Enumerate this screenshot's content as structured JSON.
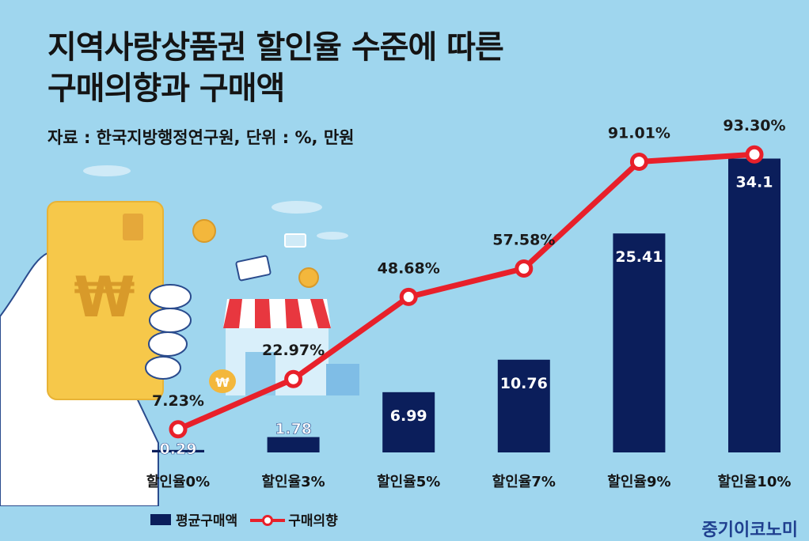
{
  "header": {
    "title_line1": "지역사랑상품권 할인율 수준에 따른",
    "title_line2": "구매의향과 구매액",
    "subtitle": "자료 : 한국지방행정연구원, 단위 : %, 만원"
  },
  "chart_data": {
    "type": "bar+line",
    "title": "지역사랑상품권 할인율 수준에 따른 구매의향과 구매액",
    "categories": [
      "할인율0%",
      "할인율3%",
      "할인율5%",
      "할인율7%",
      "할인율9%",
      "할인율10%"
    ],
    "series": [
      {
        "name": "평균구매액",
        "type": "bar",
        "unit": "만원",
        "values": [
          0.29,
          1.78,
          6.99,
          10.76,
          25.41,
          34.1
        ],
        "labels": [
          "0.29",
          "1.78",
          "6.99",
          "10.76",
          "25.41",
          "34.1"
        ]
      },
      {
        "name": "구매의향",
        "type": "line",
        "unit": "%",
        "values": [
          7.23,
          22.97,
          48.68,
          57.58,
          91.01,
          93.3
        ],
        "labels": [
          "7.23%",
          "22.97%",
          "48.68%",
          "57.58%",
          "91.01%",
          "93.30%"
        ]
      }
    ],
    "bar_ylim": [
      0,
      38
    ],
    "line_ylim": [
      0,
      105
    ],
    "legend_position": "bottom-left",
    "colors": {
      "bar": "#0b1e5b",
      "line": "#e8202a",
      "marker_fill": "#ffffff"
    }
  },
  "credit": "중기이코노미"
}
